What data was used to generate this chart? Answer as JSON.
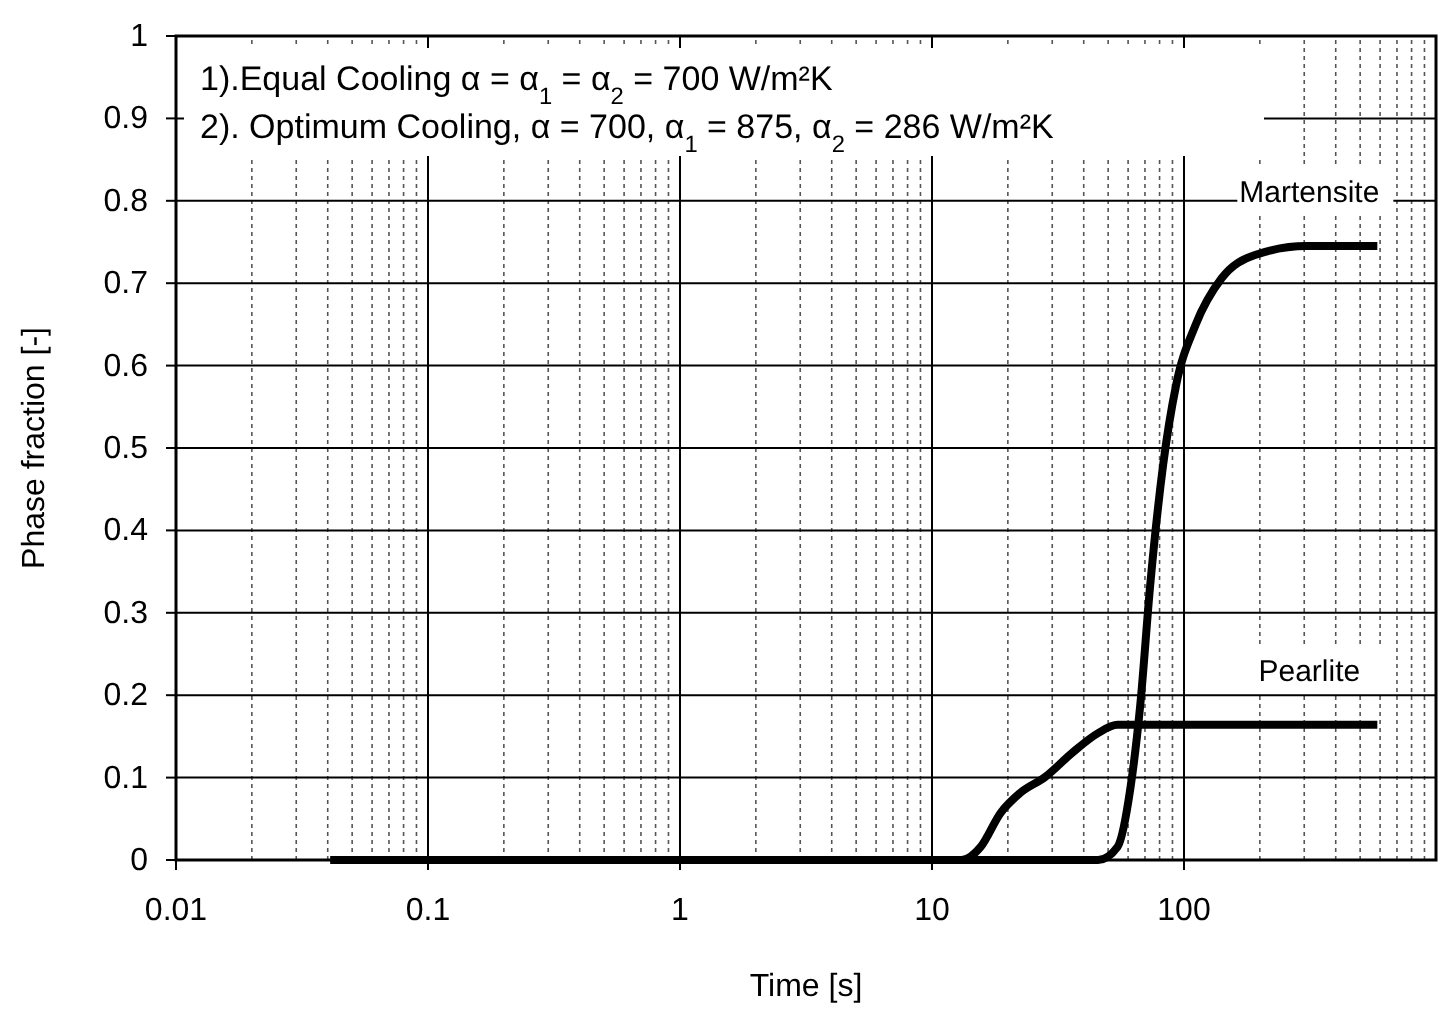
{
  "chart_data": {
    "type": "line",
    "xlabel": "Time [s]",
    "ylabel": "Phase fraction [-]",
    "log": "x",
    "xlim": [
      0.01,
      1000
    ],
    "xticks": [
      0.01,
      0.1,
      1,
      10,
      100
    ],
    "ylim": [
      0,
      1
    ],
    "yticks": [
      0,
      0.1,
      0.2,
      0.3,
      0.4,
      0.5,
      0.6,
      0.7,
      0.8,
      0.9,
      1
    ],
    "grid": true,
    "marker": "none",
    "line_style": "solid",
    "annotations": [
      "1).Equal Cooling α = α$_{1}$ = α$_{2}$ = 700 W/m²K",
      "2). Optimum Cooling, α = 700,  α$_{1}$ = 875, α$_{2}$ = 286 W/m²K"
    ],
    "series": [
      {
        "name": "Martensite",
        "color": "#000000",
        "x": [
          0.041,
          45.6,
          54.5,
          61.4,
          67,
          73.4,
          82.6,
          93,
          111,
          141,
          190,
          306,
          585
        ],
        "values": [
          0,
          0,
          0.016,
          0.089,
          0.187,
          0.333,
          0.479,
          0.576,
          0.649,
          0.706,
          0.734,
          0.745,
          0.745
        ]
      },
      {
        "name": "Pearlite",
        "color": "#000000",
        "x": [
          0.041,
          13.1,
          15.6,
          18.7,
          22.3,
          28.2,
          36,
          45.6,
          54.5,
          70,
          585
        ],
        "values": [
          0,
          0,
          0.016,
          0.057,
          0.081,
          0.101,
          0.13,
          0.154,
          0.164,
          0.164,
          0.164
        ]
      }
    ]
  }
}
